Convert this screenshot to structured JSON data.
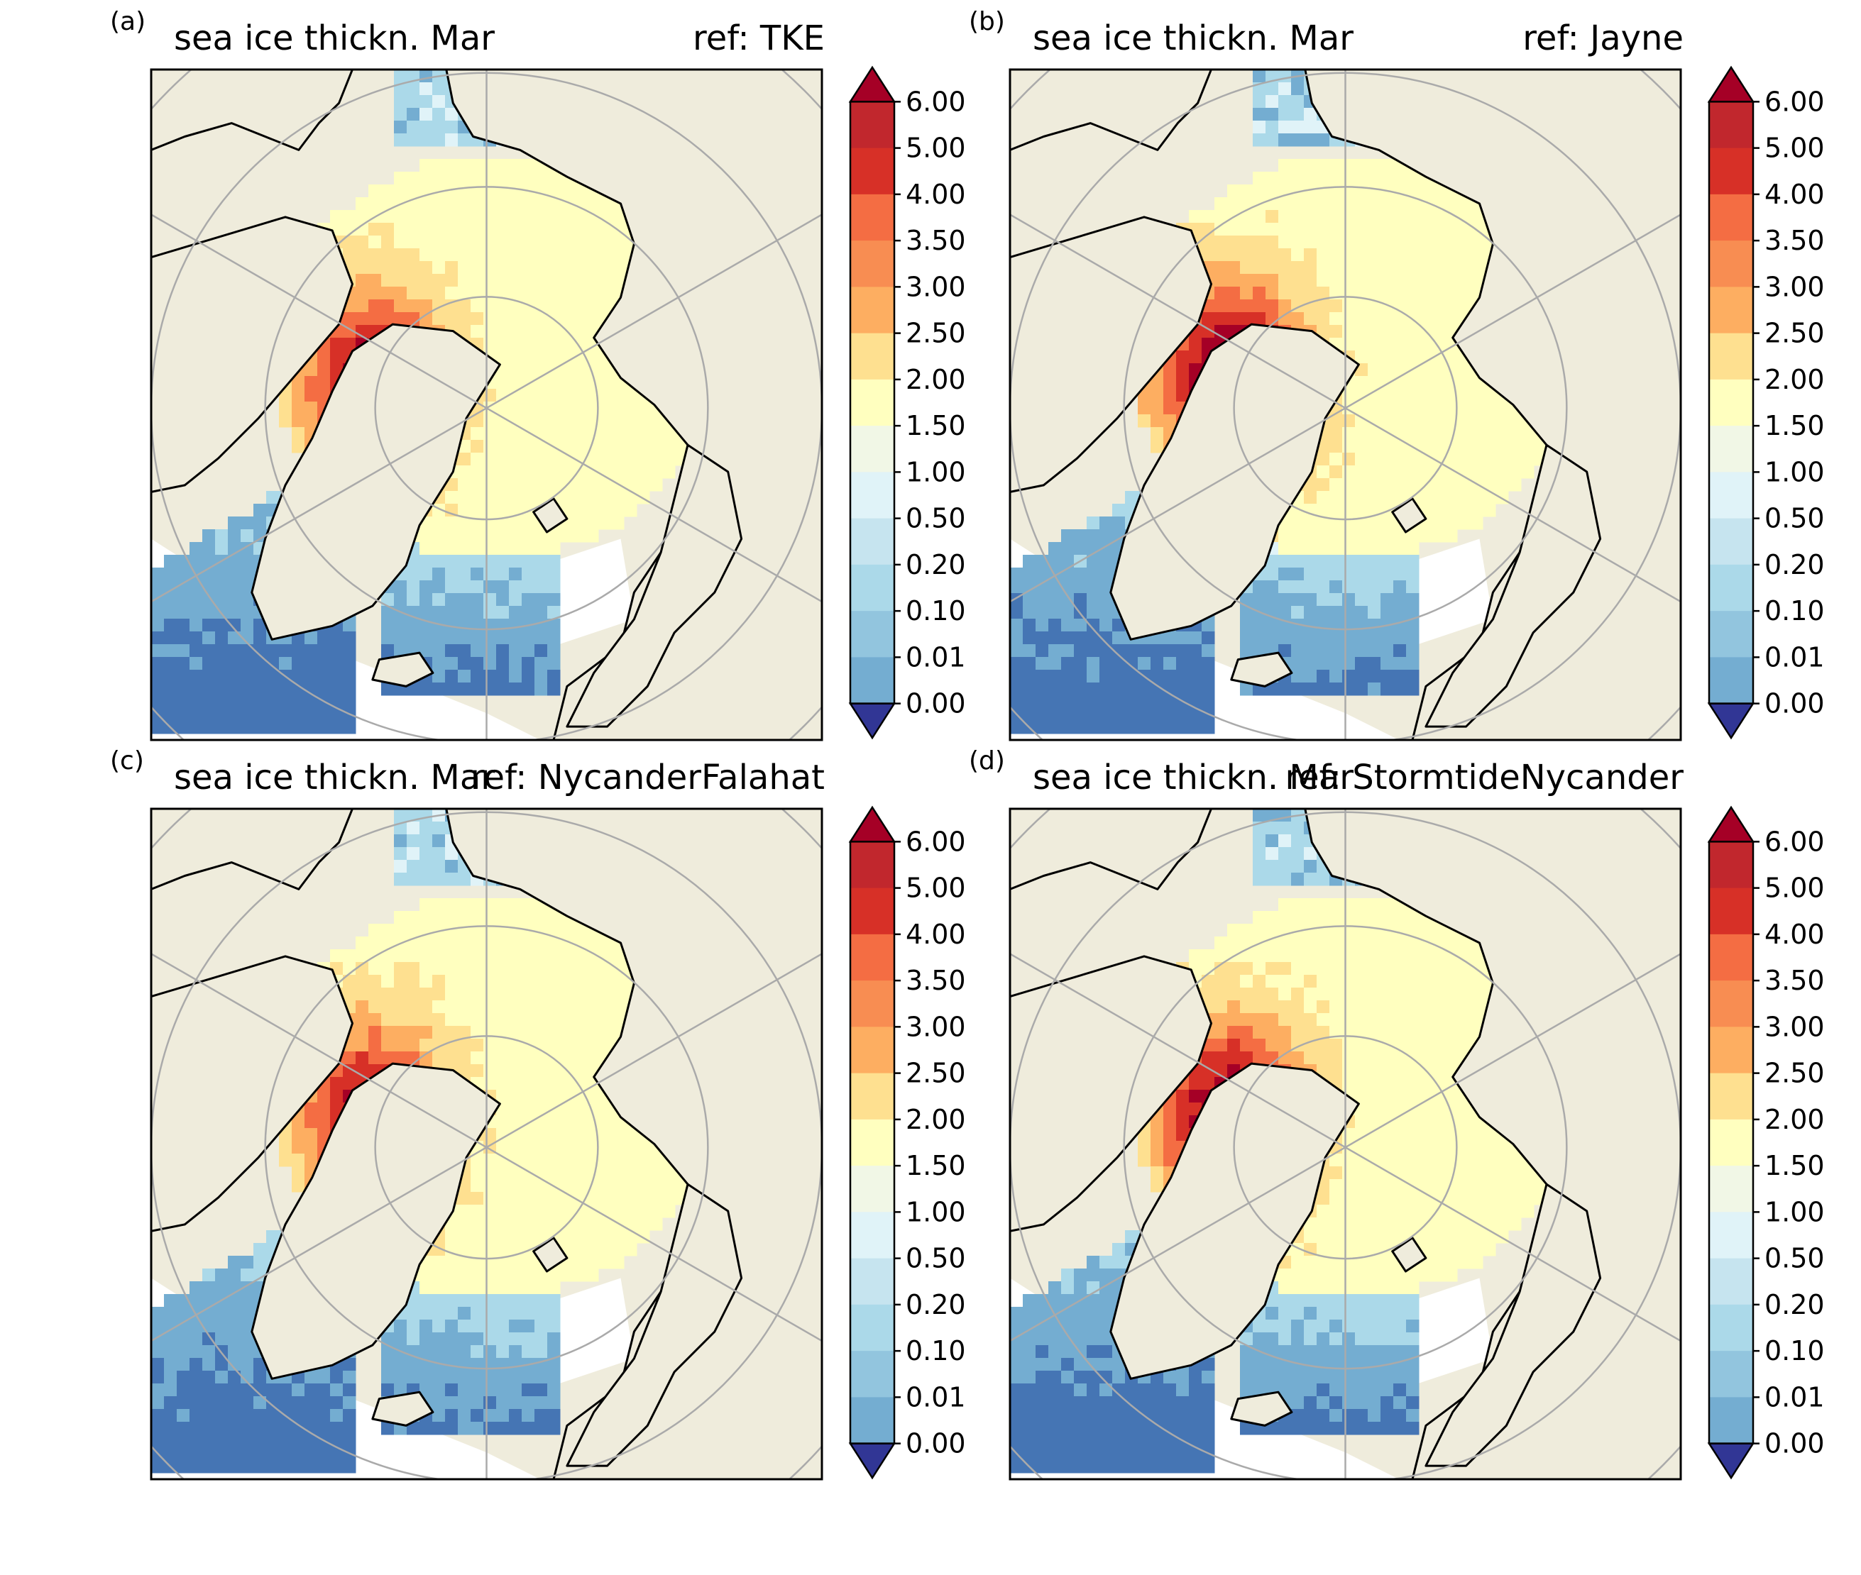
{
  "panels": [
    {
      "label": "(a)",
      "title_left": "sea ice thickn. Mar",
      "title_right": "ref: TKE",
      "variant": 0
    },
    {
      "label": "(b)",
      "title_left": "sea ice thickn. Mar",
      "title_right": "ref: Jayne",
      "variant": 1
    },
    {
      "label": "(c)",
      "title_left": "sea ice thickn. Mar",
      "title_right": "ref: NycanderFalahat",
      "variant": 2
    },
    {
      "label": "(d)",
      "title_left": "sea ice thickn. Mar",
      "title_right": "ref: StormtideNycander",
      "variant": 3
    }
  ],
  "colorbar": {
    "ticks": [
      "6.00",
      "5.00",
      "4.00",
      "3.50",
      "3.00",
      "2.50",
      "2.00",
      "1.50",
      "1.00",
      "0.50",
      "0.20",
      "0.10",
      "0.01",
      "0.00"
    ],
    "over_color": "#a50026",
    "under_color": "#313695",
    "bin_colors": [
      "#c1272d",
      "#d73027",
      "#f46d43",
      "#f88d52",
      "#fdae61",
      "#fee090",
      "#ffffbf",
      "#f1f7e6",
      "#e0f3f8",
      "#c6e4ef",
      "#abd9e9",
      "#92c5de",
      "#74add1",
      "#4575b4",
      "#3a5aa5"
    ]
  },
  "map_colors": {
    "land": "#efecdc",
    "ocean": "#ffffff",
    "coast": "#000000",
    "grid": "#aaaaaa"
  },
  "thickness_palette": [
    "#4575b4",
    "#74add1",
    "#abd9e9",
    "#e0f3f8",
    "#f1f7e6",
    "#ffffbf",
    "#fee090",
    "#fdae61",
    "#f46d43",
    "#d73027",
    "#a50026"
  ]
}
